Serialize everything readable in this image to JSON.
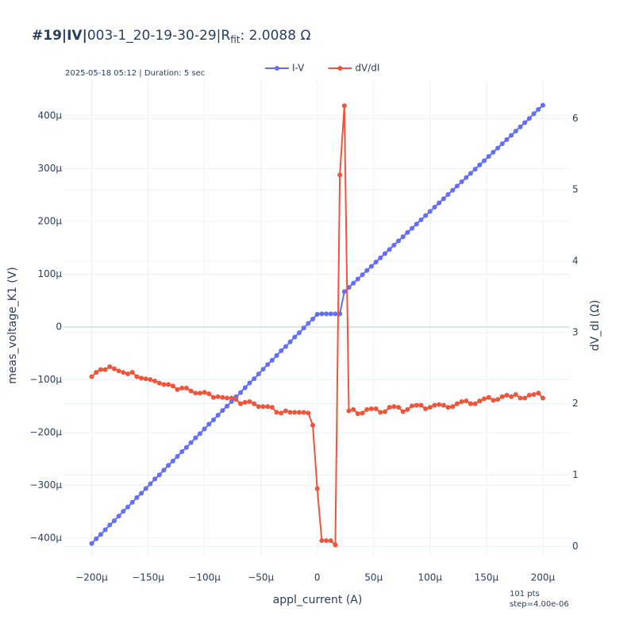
{
  "chart_data": {
    "type": "line",
    "title": {
      "bold": "#19|IV|",
      "main": "003-1_20-19-30-29|R",
      "sub": "fit",
      "tail": ": 2.0088 Ω"
    },
    "annotation": "2025-05-18 05:12 | Duration: 5 sec",
    "footnote": [
      "101 pts",
      "step=4.00e-06"
    ],
    "x_label": "appl_current (A)",
    "y_label": "meas_voltage_K1 (V)",
    "y2_label": "dV_dI (Ω)",
    "x": [
      -0.0002,
      -0.000196,
      -0.000192,
      -0.000188,
      -0.000184,
      -0.00018,
      -0.000176,
      -0.000172,
      -0.000168,
      -0.000164,
      -0.00016,
      -0.000156,
      -0.000152,
      -0.000148,
      -0.000144,
      -0.00014,
      -0.000136,
      -0.000132,
      -0.000128,
      -0.000124,
      -0.00012,
      -0.000116,
      -0.000112,
      -0.000108,
      -0.000104,
      -0.0001,
      -9.6e-05,
      -9.2e-05,
      -8.8e-05,
      -8.4e-05,
      -8e-05,
      -7.6e-05,
      -7.2e-05,
      -6.8e-05,
      -6.4e-05,
      -6e-05,
      -5.6e-05,
      -5.2e-05,
      -4.8e-05,
      -4.4e-05,
      -4e-05,
      -3.6e-05,
      -3.2e-05,
      -2.8e-05,
      -2.4e-05,
      -2e-05,
      -1.6e-05,
      -1.2e-05,
      -8e-06,
      -4e-06,
      0,
      4e-06,
      8e-06,
      1.2e-05,
      1.6e-05,
      2e-05,
      2.4e-05,
      2.8e-05,
      3.2e-05,
      3.6e-05,
      4e-05,
      4.4e-05,
      4.8e-05,
      5.2e-05,
      5.6e-05,
      6e-05,
      6.4e-05,
      6.8e-05,
      7.2e-05,
      7.6e-05,
      8e-05,
      8.4e-05,
      8.8e-05,
      9.2e-05,
      9.6e-05,
      0.0001,
      0.000104,
      0.000108,
      0.000112,
      0.000116,
      0.00012,
      0.000124,
      0.000128,
      0.000132,
      0.000136,
      0.00014,
      0.000144,
      0.000148,
      0.000152,
      0.000156,
      0.00016,
      0.000164,
      0.000168,
      0.000172,
      0.000176,
      0.00018,
      0.000184,
      0.000188,
      0.000192,
      0.000196,
      0.0002
    ],
    "series": [
      {
        "name": "I-V",
        "color": "#636efa",
        "axis": "y",
        "values": [
          -0.00041,
          -0.000401,
          -0.000393,
          -0.000384,
          -0.000375,
          -0.000367,
          -0.000358,
          -0.000349,
          -0.000341,
          -0.000332,
          -0.000323,
          -0.000315,
          -0.000306,
          -0.000297,
          -0.000288,
          -0.00028,
          -0.000271,
          -0.000262,
          -0.000254,
          -0.000245,
          -0.000236,
          -0.000228,
          -0.000219,
          -0.00021,
          -0.000202,
          -0.000193,
          -0.000184,
          -0.000176,
          -0.000167,
          -0.000158,
          -0.00015,
          -0.000141,
          -0.000132,
          -0.000124,
          -0.000115,
          -0.000106,
          -9.8e-05,
          -8.9e-05,
          -8e-05,
          -7.1e-05,
          -6.3e-05,
          -5.4e-05,
          -4.5e-05,
          -3.7e-05,
          -2.8e-05,
          -1.9e-05,
          -1.1e-05,
          -2e-06,
          7e-06,
          1.5e-05,
          2.4e-05,
          2.5e-05,
          2.5e-05,
          2.5e-05,
          2.5e-05,
          2.5e-05,
          6.7e-05,
          7.5e-05,
          8.3e-05,
          9.1e-05,
          9.9e-05,
          0.000107,
          0.000115,
          0.000123,
          0.000131,
          0.000139,
          0.000147,
          0.000155,
          0.000163,
          0.000171,
          0.000179,
          0.000187,
          0.000195,
          0.000203,
          0.000211,
          0.000219,
          0.000227,
          0.000235,
          0.000243,
          0.000251,
          0.000259,
          0.000267,
          0.000275,
          0.000283,
          0.000291,
          0.000299,
          0.000307,
          0.000315,
          0.000323,
          0.000331,
          0.000339,
          0.000347,
          0.000355,
          0.000363,
          0.000371,
          0.000379,
          0.000387,
          0.000395,
          0.000404,
          0.000412,
          0.00042
        ]
      },
      {
        "name": "dV/dI",
        "color": "#ef553b",
        "axis": "y2",
        "values": [
          2.38,
          2.44,
          2.48,
          2.48,
          2.52,
          2.49,
          2.46,
          2.44,
          2.42,
          2.44,
          2.38,
          2.36,
          2.35,
          2.34,
          2.32,
          2.29,
          2.27,
          2.27,
          2.25,
          2.2,
          2.22,
          2.22,
          2.18,
          2.15,
          2.15,
          2.16,
          2.14,
          2.09,
          2.1,
          2.09,
          2.08,
          2.08,
          2.06,
          2.0,
          2.02,
          2.03,
          2.0,
          1.96,
          1.96,
          1.96,
          1.95,
          1.88,
          1.87,
          1.9,
          1.88,
          1.88,
          1.88,
          1.88,
          1.87,
          1.7,
          0.81,
          0.08,
          0.08,
          0.08,
          0.02,
          5.21,
          6.18,
          1.9,
          1.92,
          1.86,
          1.87,
          1.92,
          1.93,
          1.93,
          1.88,
          1.89,
          1.95,
          1.96,
          1.95,
          1.89,
          1.92,
          1.97,
          1.98,
          1.98,
          1.93,
          1.95,
          1.98,
          1.99,
          1.98,
          1.95,
          1.96,
          2.0,
          2.03,
          2.04,
          2.0,
          2.0,
          2.04,
          2.07,
          2.09,
          2.05,
          2.06,
          2.1,
          2.12,
          2.1,
          2.13,
          2.08,
          2.08,
          2.12,
          2.13,
          2.15,
          2.08
        ]
      }
    ],
    "xlim": [
      -0.000225,
      0.000224
    ],
    "xticks": [
      {
        "value": -0.0002,
        "label": "−200µ"
      },
      {
        "value": -0.00015,
        "label": "−150µ"
      },
      {
        "value": -0.0001,
        "label": "−100µ"
      },
      {
        "value": -5e-05,
        "label": "−50µ"
      },
      0,
      {
        "value": 5e-05,
        "label": "50µ"
      },
      {
        "value": 0.0001,
        "label": "100µ"
      },
      {
        "value": 0.00015,
        "label": "150µ"
      },
      {
        "value": 0.0002,
        "label": "200µ"
      }
    ],
    "ylim": [
      -0.000433,
      0.000469
    ],
    "yticks": [
      {
        "value": -0.0004,
        "label": "−400µ"
      },
      {
        "value": -0.0003,
        "label": "−300µ"
      },
      {
        "value": -0.0002,
        "label": "−200µ"
      },
      {
        "value": -0.0001,
        "label": "−100µ"
      },
      0,
      {
        "value": 0.0001,
        "label": "100µ"
      },
      {
        "value": 0.0002,
        "label": "200µ"
      },
      {
        "value": 0.0003,
        "label": "300µ"
      },
      {
        "value": 0.0004,
        "label": "400µ"
      }
    ],
    "y2lim": [
      -0.13,
      6.55
    ],
    "y2ticks": [
      0,
      1,
      2,
      3,
      4,
      5,
      6
    ],
    "grid": true,
    "legend": "top"
  }
}
